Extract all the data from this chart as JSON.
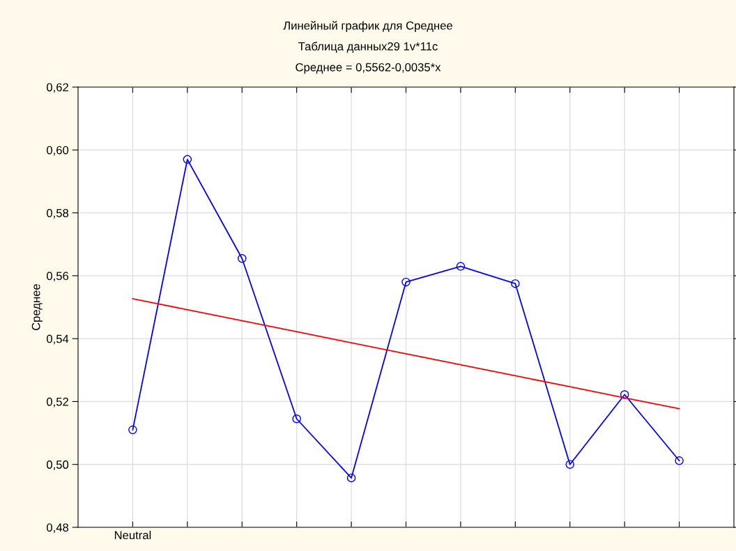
{
  "chart_data": {
    "type": "line",
    "title": "Линейный график для Среднее",
    "subtitle": "Таблица данных29 1v*11c\nСреднее = 0,5562-0,0035*x",
    "ylabel": "Среднее",
    "categories": [
      "Neutral",
      null,
      null,
      null,
      null,
      null,
      null,
      null,
      null,
      null,
      null
    ],
    "series": [
      {
        "color": "#0000ff",
        "marker": "circle",
        "values": [
          0.511,
          0.597,
          0.5655,
          0.5145,
          0.4957,
          0.558,
          0.563,
          0.5575,
          0.5,
          0.5222,
          0.5012
        ]
      },
      {
        "color": "#ff0000",
        "marker": "none",
        "values": [
          0.5527,
          0.5492,
          0.5457,
          0.5422,
          0.5387,
          0.5352,
          0.5317,
          0.5282,
          0.5247,
          0.5212,
          0.5177
        ]
      }
    ],
    "ylim": [
      0.48,
      0.62
    ],
    "yticks": [
      {
        "value": 0.48,
        "label": "0,48"
      },
      {
        "value": 0.5,
        "label": "0,50"
      },
      {
        "value": 0.52,
        "label": "0,52"
      },
      {
        "value": 0.54,
        "label": "0,54"
      },
      {
        "value": 0.56,
        "label": "0,56"
      },
      {
        "value": 0.58,
        "label": "0,58"
      },
      {
        "value": 0.6,
        "label": "0,60"
      },
      {
        "value": 0.62,
        "label": "0,62"
      }
    ],
    "grid": true,
    "legend": false
  }
}
